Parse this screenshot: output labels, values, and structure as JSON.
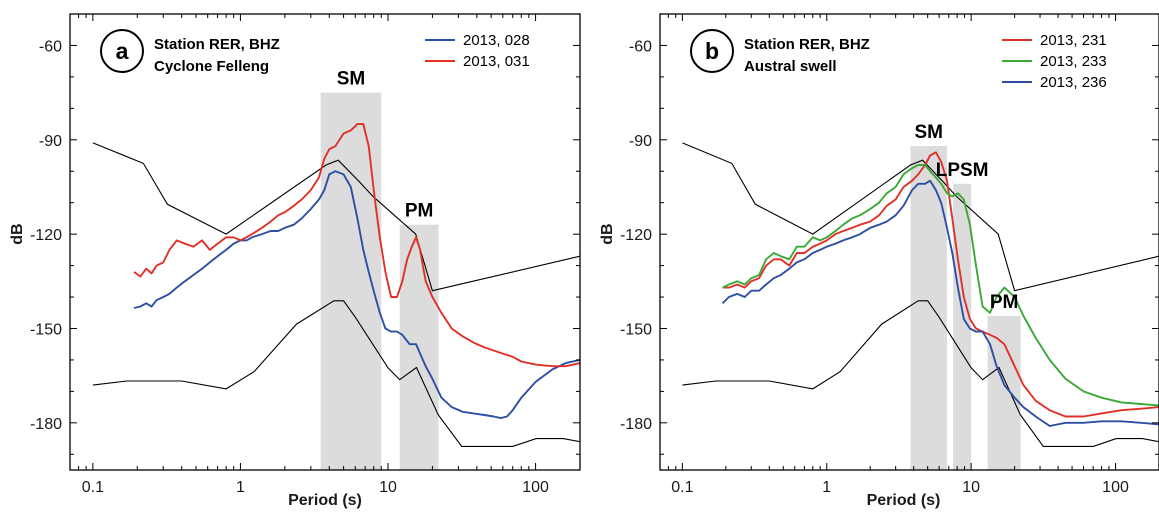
{
  "chart_data": [
    {
      "type": "line",
      "panel_letter": "a",
      "info_lines": [
        "Station RER, BHZ",
        "Cyclone Felleng"
      ],
      "xlabel": "Period (s)",
      "ylabel": "dB",
      "xscale": "log",
      "xlim": [
        0.07,
        200
      ],
      "ylim": [
        -195,
        -50
      ],
      "xticks": [
        0.1,
        1,
        10,
        100
      ],
      "xtick_labels": [
        "0.1",
        "1",
        "10",
        "100"
      ],
      "yticks": [
        -60,
        -90,
        -120,
        -150,
        -180
      ],
      "ytick_labels": [
        "-60",
        "-90",
        "-120",
        "-150",
        "-180"
      ],
      "legend_position": "top-right",
      "bands": [
        {
          "label": "SM",
          "x": [
            3.5,
            9
          ],
          "ylim": [
            -195,
            -75
          ]
        },
        {
          "label": "PM",
          "x": [
            12,
            22
          ],
          "ylim": [
            -195,
            -117
          ]
        }
      ],
      "reference_lines": [
        {
          "role": "high-noise-model",
          "color": "#000000",
          "x": [
            0.1,
            0.22,
            0.32,
            0.8,
            3.8,
            4.6,
            6.3,
            7.9,
            15.4,
            20,
            200
          ],
          "y": [
            -91,
            -97.5,
            -110.5,
            -120,
            -98,
            -96.5,
            -103,
            -108,
            -120,
            -138,
            -127
          ]
        },
        {
          "role": "low-noise-model",
          "color": "#000000",
          "x": [
            0.1,
            0.17,
            0.4,
            0.8,
            1.24,
            2.4,
            4.3,
            5,
            6,
            10,
            12,
            15.6,
            21.9,
            31.6,
            45,
            70,
            101,
            154,
            200
          ],
          "y": [
            -168,
            -166.7,
            -166.7,
            -169.2,
            -163.7,
            -148.6,
            -141.2,
            -141.2,
            -146.4,
            -162.5,
            -166.3,
            -162.4,
            -177.4,
            -187.5,
            -187.5,
            -187.5,
            -185,
            -185,
            -186
          ]
        }
      ],
      "series": [
        {
          "name": "2013, 028",
          "color": "#2e4fa3",
          "x": [
            0.19,
            0.21,
            0.23,
            0.25,
            0.27,
            0.3,
            0.33,
            0.37,
            0.42,
            0.48,
            0.55,
            0.62,
            0.7,
            0.8,
            0.9,
            1.0,
            1.1,
            1.2,
            1.4,
            1.6,
            1.8,
            2.0,
            2.3,
            2.6,
            3.0,
            3.4,
            3.7,
            4.0,
            4.4,
            5.0,
            5.6,
            6.2,
            6.8,
            7.4,
            8.1,
            8.8,
            9.6,
            10.5,
            11.5,
            12.5,
            14.0,
            15.5,
            16.5,
            18.0,
            20.0,
            23.0,
            27.0,
            32.0,
            38.0,
            45.0,
            52.0,
            58.0,
            64.0,
            70.0,
            80.0,
            100.0,
            130.0,
            160.0,
            200.0
          ],
          "y": [
            -143.5,
            -143,
            -142,
            -143,
            -141,
            -140,
            -139,
            -137,
            -135,
            -133,
            -131,
            -129,
            -127,
            -125,
            -123,
            -122,
            -122,
            -121,
            -120,
            -119,
            -119,
            -118,
            -117,
            -115,
            -112,
            -109,
            -106,
            -101,
            -100,
            -101,
            -105,
            -115,
            -125,
            -132,
            -139,
            -145,
            -150,
            -151,
            -151,
            -152,
            -155,
            -155,
            -158,
            -162,
            -166,
            -172,
            -175,
            -176.5,
            -177,
            -177.5,
            -178,
            -178.5,
            -178,
            -176,
            -172,
            -167,
            -163,
            -161,
            -160
          ]
        },
        {
          "name": "2013, 031",
          "color": "#e03128",
          "x": [
            0.19,
            0.21,
            0.23,
            0.25,
            0.27,
            0.3,
            0.33,
            0.37,
            0.42,
            0.48,
            0.55,
            0.62,
            0.7,
            0.8,
            0.9,
            1.0,
            1.1,
            1.2,
            1.4,
            1.6,
            1.8,
            2.0,
            2.3,
            2.6,
            3.0,
            3.4,
            3.7,
            4.0,
            4.4,
            5.0,
            5.6,
            6.2,
            6.8,
            7.4,
            8.1,
            8.8,
            9.6,
            10.5,
            11.5,
            12.5,
            13.5,
            14.5,
            15.5,
            16.5,
            18.0,
            20.0,
            23.0,
            27.0,
            32.0,
            38.0,
            45.0,
            52.0,
            60.0,
            70.0,
            80.0,
            100.0,
            130.0,
            160.0,
            200.0
          ],
          "y": [
            -132,
            -133.5,
            -131,
            -132.5,
            -130,
            -129,
            -125,
            -122,
            -123,
            -124,
            -122,
            -125,
            -123,
            -121,
            -121,
            -122,
            -121,
            -120,
            -118,
            -116,
            -114,
            -113,
            -111,
            -109,
            -106,
            -102,
            -96,
            -93,
            -92,
            -88,
            -87,
            -85,
            -85,
            -92,
            -108,
            -121,
            -132,
            -140,
            -140,
            -135,
            -128,
            -124,
            -121,
            -125,
            -135,
            -140,
            -145,
            -150,
            -152.5,
            -154.5,
            -156,
            -157,
            -158,
            -159,
            -160.5,
            -161.5,
            -162,
            -162,
            -161
          ]
        }
      ]
    },
    {
      "type": "line",
      "panel_letter": "b",
      "info_lines": [
        "Station RER, BHZ",
        "Austral swell"
      ],
      "xlabel": "Period (s)",
      "ylabel": "dB",
      "xscale": "log",
      "xlim": [
        0.07,
        200
      ],
      "ylim": [
        -195,
        -50
      ],
      "xticks": [
        0.1,
        1,
        10,
        100
      ],
      "xtick_labels": [
        "0.1",
        "1",
        "10",
        "100"
      ],
      "yticks": [
        -60,
        -90,
        -120,
        -150,
        -180
      ],
      "ytick_labels": [
        "-60",
        "-90",
        "-120",
        "-150",
        "-180"
      ],
      "legend_position": "top-right",
      "bands": [
        {
          "label": "SM",
          "x": [
            3.8,
            6.8
          ],
          "ylim": [
            -195,
            -92
          ]
        },
        {
          "label": "LPSM",
          "x": [
            7.5,
            10
          ],
          "ylim": [
            -195,
            -104
          ]
        },
        {
          "label": "PM",
          "x": [
            13,
            22
          ],
          "ylim": [
            -195,
            -146
          ]
        }
      ],
      "reference_lines": [
        {
          "role": "high-noise-model",
          "color": "#000000",
          "x": [
            0.1,
            0.22,
            0.32,
            0.8,
            3.8,
            4.6,
            6.3,
            7.9,
            15.4,
            20,
            200
          ],
          "y": [
            -91,
            -97.5,
            -110.5,
            -120,
            -98,
            -96.5,
            -103,
            -108,
            -120,
            -138,
            -127
          ]
        },
        {
          "role": "low-noise-model",
          "color": "#000000",
          "x": [
            0.1,
            0.17,
            0.4,
            0.8,
            1.24,
            2.4,
            4.3,
            5,
            6,
            10,
            12,
            15.6,
            21.9,
            31.6,
            45,
            70,
            101,
            154,
            200
          ],
          "y": [
            -168,
            -166.7,
            -166.7,
            -169.2,
            -163.7,
            -148.6,
            -141.2,
            -141.2,
            -146.4,
            -162.5,
            -166.3,
            -162.4,
            -177.4,
            -187.5,
            -187.5,
            -187.5,
            -185,
            -185,
            -186
          ]
        }
      ],
      "series": [
        {
          "name": "2013, 231",
          "color": "#e03128",
          "x": [
            0.19,
            0.21,
            0.24,
            0.27,
            0.3,
            0.34,
            0.38,
            0.43,
            0.48,
            0.55,
            0.62,
            0.7,
            0.8,
            0.9,
            1.0,
            1.15,
            1.3,
            1.5,
            1.7,
            2.0,
            2.3,
            2.6,
            3.0,
            3.4,
            3.9,
            4.3,
            4.8,
            5.2,
            5.7,
            6.2,
            6.8,
            7.4,
            8.1,
            8.9,
            9.8,
            10.8,
            12.0,
            13.5,
            15.0,
            17.0,
            20.0,
            23.0,
            28.0,
            35.0,
            45.0,
            60.0,
            80.0,
            110.0,
            150.0,
            200.0
          ],
          "y": [
            -137,
            -137,
            -136,
            -137,
            -135,
            -134,
            -130,
            -128,
            -128,
            -130,
            -126,
            -126,
            -124,
            -123,
            -122,
            -120,
            -119,
            -118,
            -117,
            -116,
            -114,
            -111,
            -109,
            -105,
            -103,
            -101,
            -98,
            -95,
            -94,
            -97,
            -103,
            -115,
            -128,
            -140,
            -147,
            -150,
            -151,
            -152,
            -153,
            -155,
            -162,
            -168,
            -173,
            -176,
            -178,
            -178,
            -177,
            -176,
            -175.5,
            -175
          ]
        },
        {
          "name": "2013, 233",
          "color": "#3aa935",
          "x": [
            0.19,
            0.21,
            0.24,
            0.27,
            0.3,
            0.34,
            0.38,
            0.43,
            0.48,
            0.55,
            0.62,
            0.7,
            0.8,
            0.9,
            1.0,
            1.15,
            1.3,
            1.5,
            1.7,
            2.0,
            2.3,
            2.6,
            3.0,
            3.4,
            3.9,
            4.3,
            4.8,
            5.2,
            5.7,
            6.2,
            6.8,
            7.4,
            8.1,
            8.9,
            9.8,
            10.8,
            12.0,
            13.5,
            15.0,
            17.0,
            20.0,
            23.0,
            28.0,
            35.0,
            45.0,
            60.0,
            80.0,
            110.0,
            150.0,
            200.0
          ],
          "y": [
            -137,
            -136,
            -135,
            -136,
            -134,
            -133,
            -128,
            -126,
            -127,
            -128,
            -124,
            -124,
            -121,
            -122,
            -121,
            -119,
            -117,
            -115,
            -114,
            -112,
            -110,
            -107,
            -105,
            -101,
            -99,
            -98,
            -98,
            -100,
            -102,
            -104,
            -107,
            -108,
            -107,
            -109,
            -117,
            -130,
            -143,
            -145,
            -140,
            -137,
            -140,
            -146,
            -153,
            -160,
            -166,
            -170,
            -172,
            -173.5,
            -174,
            -174.5
          ]
        },
        {
          "name": "2013, 236",
          "color": "#2e4fa3",
          "x": [
            0.19,
            0.21,
            0.24,
            0.27,
            0.3,
            0.34,
            0.38,
            0.43,
            0.48,
            0.55,
            0.62,
            0.7,
            0.8,
            0.9,
            1.0,
            1.15,
            1.3,
            1.5,
            1.7,
            2.0,
            2.3,
            2.6,
            3.0,
            3.4,
            3.9,
            4.3,
            4.8,
            5.2,
            5.7,
            6.2,
            6.8,
            7.4,
            8.1,
            8.9,
            9.8,
            10.8,
            12.0,
            13.5,
            15.0,
            17.0,
            20.0,
            23.0,
            28.0,
            35.0,
            45.0,
            60.0,
            80.0,
            110.0,
            150.0,
            200.0
          ],
          "y": [
            -142,
            -140,
            -139,
            -140,
            -138,
            -138,
            -136,
            -134,
            -133,
            -131,
            -129,
            -128,
            -126,
            -125,
            -124,
            -123,
            -122,
            -121,
            -120,
            -118,
            -117,
            -116,
            -114,
            -111,
            -106,
            -104,
            -104,
            -103,
            -106,
            -110,
            -118,
            -126,
            -137,
            -147,
            -150,
            -151,
            -151,
            -155,
            -162,
            -168,
            -172,
            -175,
            -178,
            -181,
            -180,
            -180,
            -179.5,
            -179.5,
            -180,
            -180.5
          ]
        }
      ]
    }
  ]
}
